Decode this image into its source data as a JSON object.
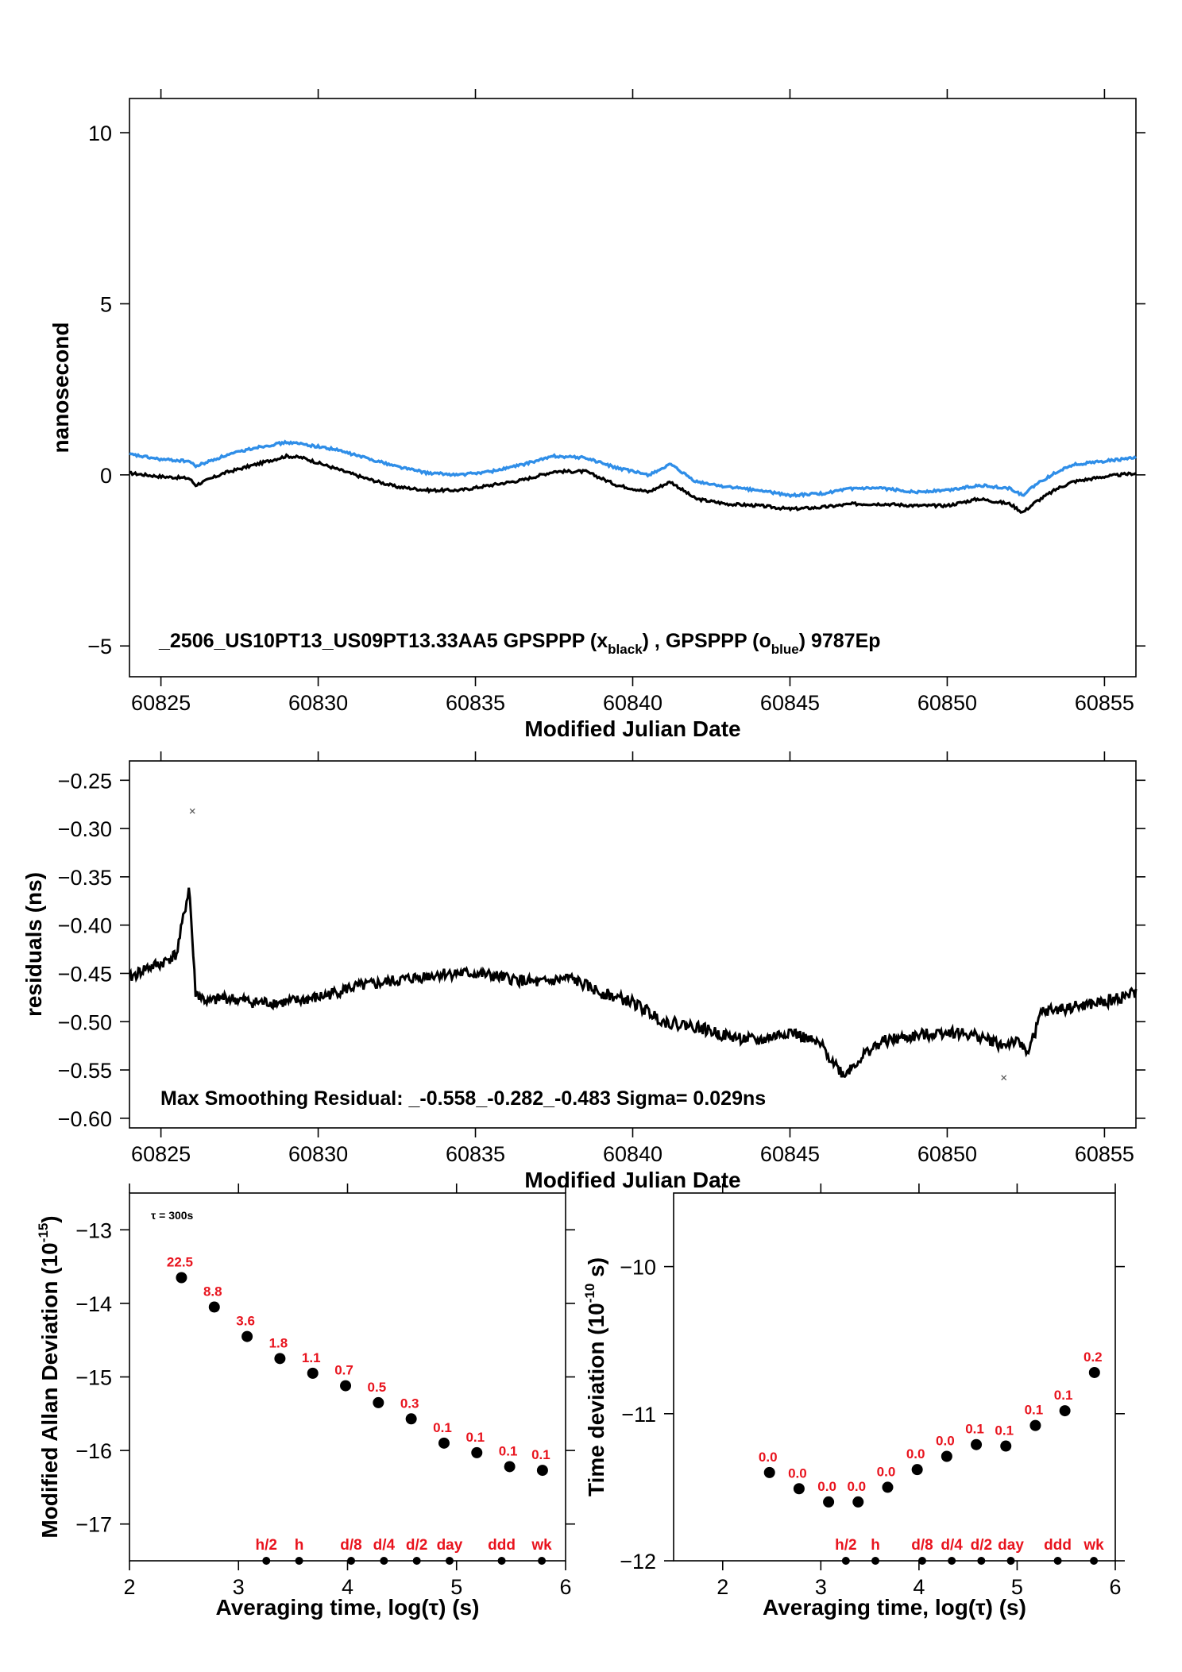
{
  "chart_data": [
    {
      "id": "phase",
      "type": "line",
      "xlabel": "Modified Julian Date",
      "ylabel": "nanosecond",
      "xlim": [
        60824,
        60856
      ],
      "ylim": [
        -5.9,
        11
      ],
      "xticks": [
        60825,
        60830,
        60835,
        60840,
        60845,
        60850,
        60855
      ],
      "yticks": [
        -5,
        0,
        5,
        10
      ],
      "annotation_parts": {
        "prefix": "_2506_US10PT13_US09PT13.33AA5     GPSPPP (x",
        "sub1": "black",
        "mid": ") ,  GPSPPP (o",
        "sub2": "blue",
        "suffix": ")  9787Ep"
      },
      "series": [
        {
          "marker": "x",
          "color": "#000000",
          "x": [
            60824,
            60825,
            60825.9,
            60826.1,
            60827,
            60828,
            60829,
            60829.5,
            60830.5,
            60831.5,
            60832.5,
            60833.5,
            60834.5,
            60835.5,
            60836.5,
            60837.5,
            60838.5,
            60839.5,
            60840.5,
            60841.2,
            60842,
            60843,
            60844,
            60845,
            60846,
            60847,
            60848,
            60849,
            60850,
            60851,
            60852,
            60852.4,
            60852.8,
            60853.5,
            60854,
            60855,
            60856
          ],
          "values": [
            0.05,
            -0.05,
            -0.1,
            -0.3,
            0.05,
            0.3,
            0.55,
            0.5,
            0.2,
            -0.1,
            -0.35,
            -0.45,
            -0.45,
            -0.3,
            -0.15,
            0.1,
            0.1,
            -0.3,
            -0.5,
            -0.2,
            -0.7,
            -0.85,
            -0.9,
            -1.0,
            -0.95,
            -0.85,
            -0.85,
            -0.9,
            -0.9,
            -0.7,
            -0.85,
            -1.1,
            -0.8,
            -0.4,
            -0.2,
            -0.05,
            0.05
          ]
        },
        {
          "marker": "o",
          "color": "#2f8ee8",
          "x": [
            60824,
            60825,
            60825.9,
            60826.1,
            60827,
            60828,
            60829,
            60829.5,
            60830.5,
            60831.5,
            60832.5,
            60833.5,
            60834.5,
            60835.5,
            60836.5,
            60837.5,
            60838.5,
            60839.5,
            60840.5,
            60841.2,
            60842,
            60843,
            60844,
            60845,
            60846,
            60847,
            60848,
            60849,
            60850,
            60851,
            60852,
            60852.4,
            60852.8,
            60853.5,
            60854,
            60855,
            60856
          ],
          "values": [
            0.6,
            0.45,
            0.4,
            0.25,
            0.55,
            0.8,
            0.95,
            0.9,
            0.75,
            0.5,
            0.25,
            0.05,
            0.0,
            0.1,
            0.3,
            0.55,
            0.5,
            0.2,
            0.0,
            0.3,
            -0.2,
            -0.35,
            -0.45,
            -0.6,
            -0.55,
            -0.4,
            -0.4,
            -0.5,
            -0.45,
            -0.3,
            -0.4,
            -0.6,
            -0.3,
            0.1,
            0.3,
            0.4,
            0.5
          ]
        }
      ]
    },
    {
      "id": "residuals",
      "type": "scatter",
      "xlabel": "Modified Julian Date",
      "ylabel": "residuals (ns)",
      "xlim": [
        60824,
        60856
      ],
      "ylim": [
        -0.61,
        -0.23
      ],
      "xticks": [
        60825,
        60830,
        60835,
        60840,
        60845,
        60850,
        60855
      ],
      "yticks": [
        -0.6,
        -0.55,
        -0.5,
        -0.45,
        -0.4,
        -0.35,
        -0.3,
        -0.25
      ],
      "ytick_labels": [
        "−0.60",
        "−0.55",
        "−0.50",
        "−0.45",
        "−0.40",
        "−0.35",
        "−0.30",
        "−0.25"
      ],
      "annotation": "Max Smoothing Residual: _-0.558_-0.282_-0.483  Sigma= 0.029ns",
      "series": [
        {
          "marker": "x",
          "color": "#000000",
          "x": [
            60824,
            60824.5,
            60825,
            60825.5,
            60825.9,
            60826.1,
            60826.5,
            60827,
            60828,
            60829,
            60830,
            60831,
            60832,
            60833,
            60834,
            60835,
            60836,
            60837,
            60838,
            60839,
            60840,
            60840.5,
            60841,
            60842,
            60843,
            60844,
            60845,
            60846,
            60846.7,
            60847.5,
            60848,
            60849,
            60850,
            60851,
            60851.8,
            60852.1,
            60852.6,
            60853,
            60854,
            60855,
            60855.5,
            60856
          ],
          "values": [
            -0.455,
            -0.445,
            -0.44,
            -0.43,
            -0.36,
            -0.47,
            -0.48,
            -0.475,
            -0.48,
            -0.48,
            -0.475,
            -0.465,
            -0.46,
            -0.455,
            -0.45,
            -0.45,
            -0.455,
            -0.46,
            -0.455,
            -0.47,
            -0.48,
            -0.49,
            -0.5,
            -0.505,
            -0.515,
            -0.52,
            -0.51,
            -0.525,
            -0.555,
            -0.53,
            -0.52,
            -0.515,
            -0.51,
            -0.515,
            -0.525,
            -0.52,
            -0.53,
            -0.49,
            -0.485,
            -0.48,
            -0.475,
            -0.47
          ]
        }
      ],
      "outliers": {
        "x": [
          60826.0,
          60851.8
        ],
        "values": [
          -0.282,
          -0.558
        ]
      }
    },
    {
      "id": "mdev",
      "type": "scatter",
      "xlabel": "Averaging time, log(τ) (s)",
      "ylabel": "Modified Allan Deviation (10",
      "ylabel_sup": "-15",
      "ylabel_end": ")",
      "xlim": [
        2,
        6
      ],
      "ylim": [
        -17.5,
        -12.5
      ],
      "xticks": [
        2,
        3,
        4,
        5,
        6
      ],
      "yticks": [
        -17,
        -16,
        -15,
        -14,
        -13
      ],
      "tau_note": "τ = 300s",
      "x": [
        2.477,
        2.778,
        3.079,
        3.38,
        3.681,
        3.982,
        4.283,
        4.584,
        4.885,
        5.186,
        5.487,
        5.788
      ],
      "values": [
        -13.65,
        -14.05,
        -14.45,
        -14.75,
        -14.95,
        -15.12,
        -15.35,
        -15.57,
        -15.9,
        -16.03,
        -16.22,
        -16.27
      ],
      "point_labels": [
        "22.5",
        "8.8",
        "3.6",
        "1.8",
        "1.1",
        "0.7",
        "0.5",
        "0.3",
        "0.1",
        "0.1",
        "0.1",
        "0.1"
      ],
      "markers": [
        {
          "label": "h/2",
          "x": 3.255
        },
        {
          "label": "h",
          "x": 3.556
        },
        {
          "label": "d/8",
          "x": 4.033
        },
        {
          "label": "d/4",
          "x": 4.334
        },
        {
          "label": "d/2",
          "x": 4.635
        },
        {
          "label": "day",
          "x": 4.936
        },
        {
          "label": "ddd",
          "x": 5.414
        },
        {
          "label": "wk",
          "x": 5.782
        }
      ]
    },
    {
      "id": "tdev",
      "type": "scatter",
      "xlabel": "Averaging time, log(τ) (s)",
      "ylabel": "Time deviation (10",
      "ylabel_sup": "-10",
      "ylabel_end": " s)",
      "xlim": [
        1.5,
        6
      ],
      "ylim": [
        -12,
        -9.5
      ],
      "xticks": [
        2,
        3,
        4,
        5,
        6
      ],
      "yticks": [
        -12,
        -11,
        -10
      ],
      "x": [
        2.477,
        2.778,
        3.079,
        3.38,
        3.681,
        3.982,
        4.283,
        4.584,
        4.885,
        5.186,
        5.487,
        5.788
      ],
      "values": [
        -11.4,
        -11.51,
        -11.6,
        -11.6,
        -11.5,
        -11.38,
        -11.29,
        -11.21,
        -11.22,
        -11.08,
        -10.98,
        -10.72
      ],
      "point_labels": [
        "0.0",
        "0.0",
        "0.0",
        "0.0",
        "0.0",
        "0.0",
        "0.0",
        "0.1",
        "0.1",
        "0.1",
        "0.1",
        "0.2"
      ],
      "markers": [
        {
          "label": "h/2",
          "x": 3.255
        },
        {
          "label": "h",
          "x": 3.556
        },
        {
          "label": "d/8",
          "x": 4.033
        },
        {
          "label": "d/4",
          "x": 4.334
        },
        {
          "label": "d/2",
          "x": 4.635
        },
        {
          "label": "day",
          "x": 4.936
        },
        {
          "label": "ddd",
          "x": 5.414
        },
        {
          "label": "wk",
          "x": 5.782
        }
      ]
    }
  ]
}
